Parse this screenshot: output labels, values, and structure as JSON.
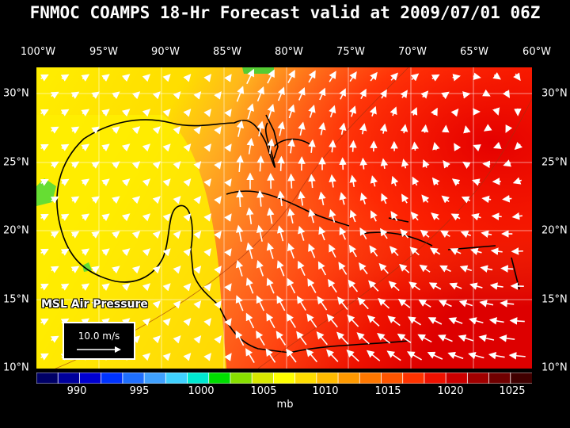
{
  "title": "FNMOC COAMPS 18-Hr Forecast valid at 2009/07/01 06Z",
  "lon_labels": [
    "100°W",
    "95°W",
    "90°W",
    "85°W",
    "80°W",
    "75°W",
    "70°W",
    "65°W",
    "60°W"
  ],
  "lat_labels": [
    "30°N",
    "25°N",
    "20°N",
    "15°N",
    "10°N"
  ],
  "field_label": "MSL Air Pressure",
  "vector_reference": "10.0 m/s",
  "colorbar": {
    "labels": [
      "990",
      "995",
      "1000",
      "1005",
      "1010",
      "1015",
      "1020",
      "1025"
    ],
    "unit": "mb",
    "colors": [
      "#000066",
      "#00009c",
      "#0000d0",
      "#0033ff",
      "#1f6fff",
      "#3fa0ff",
      "#3fd0ff",
      "#00e8d0",
      "#00dd00",
      "#88e000",
      "#d8e800",
      "#ffff00",
      "#ffdd00",
      "#ffbb00",
      "#ff9900",
      "#ff7700",
      "#ff5500",
      "#ff3300",
      "#ee1100",
      "#cc0000",
      "#a00000",
      "#700000",
      "#400000"
    ]
  },
  "colors": {
    "pressure_1010": "#ffee00",
    "pressure_1012": "#ffcc22",
    "pressure_1014": "#ff9922",
    "pressure_1016": "#ff6622",
    "pressure_1018": "#ff3311",
    "pressure_1020": "#ee1100",
    "land_low": "#66dd33"
  }
}
